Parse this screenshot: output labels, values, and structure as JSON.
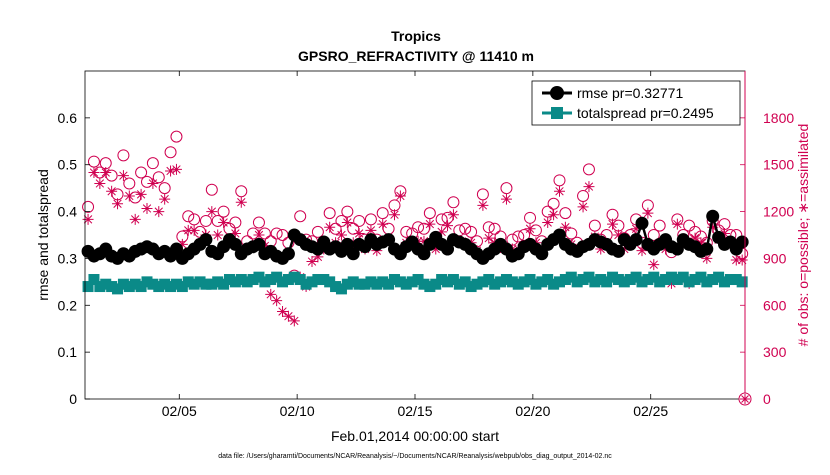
{
  "chart_data": {
    "type": "line",
    "title": "Tropics",
    "subtitle": "GPSRO_REFRACTIVITY @ 11410 m",
    "xlabel": "Feb.01,2014 00:00:00 start",
    "ylabel_left": "rmse and totalspread",
    "ylabel_right": "# of obs: o=possible; ∗=assimilated",
    "footnote": "data file: /Users/gharamti/Documents/NCAR/Reanalysis/~/Documents/NCAR/Reanalysis/webpub/obs_diag_output_2014-02.nc",
    "xlim": [
      1.0,
      29.0
    ],
    "ylim_left": [
      0,
      0.7
    ],
    "ylim_right": [
      0,
      2100
    ],
    "x_ticks": [
      {
        "value": 5,
        "label": "02/05"
      },
      {
        "value": 10,
        "label": "02/10"
      },
      {
        "value": 15,
        "label": "02/15"
      },
      {
        "value": 20,
        "label": "02/20"
      },
      {
        "value": 25,
        "label": "02/25"
      }
    ],
    "y_ticks_left": [
      {
        "value": 0,
        "label": "0"
      },
      {
        "value": 0.1,
        "label": "0.1"
      },
      {
        "value": 0.2,
        "label": "0.2"
      },
      {
        "value": 0.3,
        "label": "0.3"
      },
      {
        "value": 0.4,
        "label": "0.4"
      },
      {
        "value": 0.5,
        "label": "0.5"
      },
      {
        "value": 0.6,
        "label": "0.6"
      }
    ],
    "y_ticks_right": [
      {
        "value": 0,
        "label": "0"
      },
      {
        "value": 300,
        "label": "300"
      },
      {
        "value": 600,
        "label": "600"
      },
      {
        "value": 900,
        "label": "900"
      },
      {
        "value": 1200,
        "label": "1200"
      },
      {
        "value": 1500,
        "label": "1500"
      },
      {
        "value": 1800,
        "label": "1800"
      }
    ],
    "legend_position": "top-right",
    "series": [
      {
        "name": "rmse pr=0.32771",
        "color": "#000000",
        "marker": "circle",
        "axis": "left",
        "x": [
          1.13,
          1.38,
          1.63,
          1.88,
          2.13,
          2.38,
          2.63,
          2.88,
          3.13,
          3.38,
          3.63,
          3.88,
          4.13,
          4.38,
          4.63,
          4.88,
          5.13,
          5.38,
          5.63,
          5.88,
          6.13,
          6.38,
          6.63,
          6.88,
          7.13,
          7.38,
          7.63,
          7.88,
          8.13,
          8.38,
          8.63,
          8.88,
          9.13,
          9.38,
          9.63,
          9.88,
          10.13,
          10.38,
          10.63,
          10.88,
          11.13,
          11.38,
          11.63,
          11.88,
          12.13,
          12.38,
          12.63,
          12.88,
          13.13,
          13.38,
          13.63,
          13.88,
          14.13,
          14.38,
          14.63,
          14.88,
          15.13,
          15.38,
          15.63,
          15.88,
          16.13,
          16.38,
          16.63,
          16.88,
          17.13,
          17.38,
          17.63,
          17.88,
          18.13,
          18.38,
          18.63,
          18.88,
          19.13,
          19.38,
          19.63,
          19.88,
          20.13,
          20.38,
          20.63,
          20.88,
          21.13,
          21.38,
          21.63,
          21.88,
          22.13,
          22.38,
          22.63,
          22.88,
          23.13,
          23.38,
          23.63,
          23.88,
          24.13,
          24.38,
          24.63,
          24.88,
          25.13,
          25.38,
          25.63,
          25.88,
          26.13,
          26.38,
          26.63,
          26.88,
          27.13,
          27.38,
          27.63,
          27.88,
          28.13,
          28.38,
          28.63,
          28.88
        ],
        "values": [
          0.315,
          0.305,
          0.31,
          0.32,
          0.305,
          0.3,
          0.31,
          0.305,
          0.315,
          0.32,
          0.325,
          0.32,
          0.31,
          0.315,
          0.305,
          0.32,
          0.3,
          0.31,
          0.32,
          0.33,
          0.34,
          0.315,
          0.31,
          0.325,
          0.34,
          0.33,
          0.31,
          0.32,
          0.325,
          0.33,
          0.31,
          0.315,
          0.305,
          0.3,
          0.31,
          0.35,
          0.34,
          0.33,
          0.325,
          0.32,
          0.335,
          0.32,
          0.325,
          0.315,
          0.33,
          0.31,
          0.33,
          0.325,
          0.34,
          0.33,
          0.335,
          0.34,
          0.32,
          0.31,
          0.325,
          0.335,
          0.32,
          0.31,
          0.33,
          0.345,
          0.33,
          0.32,
          0.34,
          0.335,
          0.33,
          0.32,
          0.31,
          0.3,
          0.31,
          0.32,
          0.33,
          0.32,
          0.305,
          0.31,
          0.325,
          0.33,
          0.32,
          0.31,
          0.33,
          0.34,
          0.35,
          0.33,
          0.32,
          0.315,
          0.325,
          0.33,
          0.34,
          0.335,
          0.33,
          0.32,
          0.315,
          0.34,
          0.33,
          0.34,
          0.375,
          0.33,
          0.32,
          0.33,
          0.34,
          0.325,
          0.32,
          0.34,
          0.33,
          0.325,
          0.315,
          0.32,
          0.39,
          0.345,
          0.33,
          0.335,
          0.32,
          0.335
        ]
      },
      {
        "name": "totalspread pr=0.2495",
        "color": "#0a8a88",
        "marker": "square",
        "axis": "left",
        "x": [
          1.13,
          1.38,
          1.63,
          1.88,
          2.13,
          2.38,
          2.63,
          2.88,
          3.13,
          3.38,
          3.63,
          3.88,
          4.13,
          4.38,
          4.63,
          4.88,
          5.13,
          5.38,
          5.63,
          5.88,
          6.13,
          6.38,
          6.63,
          6.88,
          7.13,
          7.38,
          7.63,
          7.88,
          8.13,
          8.38,
          8.63,
          8.88,
          9.13,
          9.38,
          9.63,
          9.88,
          10.13,
          10.38,
          10.63,
          10.88,
          11.13,
          11.38,
          11.63,
          11.88,
          12.13,
          12.38,
          12.63,
          12.88,
          13.13,
          13.38,
          13.63,
          13.88,
          14.13,
          14.38,
          14.63,
          14.88,
          15.13,
          15.38,
          15.63,
          15.88,
          16.13,
          16.38,
          16.63,
          16.88,
          17.13,
          17.38,
          17.63,
          17.88,
          18.13,
          18.38,
          18.63,
          18.88,
          19.13,
          19.38,
          19.63,
          19.88,
          20.13,
          20.38,
          20.63,
          20.88,
          21.13,
          21.38,
          21.63,
          21.88,
          22.13,
          22.38,
          22.63,
          22.88,
          23.13,
          23.38,
          23.63,
          23.88,
          24.13,
          24.38,
          24.63,
          24.88,
          25.13,
          25.38,
          25.63,
          25.88,
          26.13,
          26.38,
          26.63,
          26.88,
          27.13,
          27.38,
          27.63,
          27.88,
          28.13,
          28.38,
          28.63,
          28.88
        ],
        "values": [
          0.24,
          0.255,
          0.24,
          0.245,
          0.24,
          0.235,
          0.245,
          0.24,
          0.245,
          0.24,
          0.25,
          0.245,
          0.24,
          0.245,
          0.24,
          0.245,
          0.24,
          0.25,
          0.245,
          0.25,
          0.245,
          0.245,
          0.25,
          0.245,
          0.255,
          0.25,
          0.255,
          0.25,
          0.255,
          0.26,
          0.25,
          0.255,
          0.26,
          0.25,
          0.255,
          0.26,
          0.255,
          0.245,
          0.25,
          0.255,
          0.255,
          0.25,
          0.24,
          0.235,
          0.245,
          0.25,
          0.245,
          0.245,
          0.25,
          0.245,
          0.25,
          0.245,
          0.255,
          0.25,
          0.245,
          0.25,
          0.255,
          0.245,
          0.24,
          0.245,
          0.255,
          0.25,
          0.255,
          0.245,
          0.25,
          0.24,
          0.245,
          0.25,
          0.255,
          0.245,
          0.25,
          0.255,
          0.25,
          0.245,
          0.25,
          0.255,
          0.245,
          0.25,
          0.255,
          0.245,
          0.25,
          0.255,
          0.26,
          0.25,
          0.255,
          0.26,
          0.25,
          0.255,
          0.25,
          0.26,
          0.255,
          0.25,
          0.255,
          0.26,
          0.25,
          0.255,
          0.26,
          0.25,
          0.255,
          0.26,
          0.255,
          0.26,
          0.25,
          0.255,
          0.26,
          0.25,
          0.255,
          0.26,
          0.25,
          0.255,
          0.255,
          0.25
        ]
      },
      {
        "name": "possible",
        "color": "#d00050",
        "marker": "open-circle",
        "axis": "right",
        "x": [
          1.13,
          1.38,
          1.63,
          1.88,
          2.13,
          2.38,
          2.63,
          2.88,
          3.13,
          3.38,
          3.63,
          3.88,
          4.13,
          4.38,
          4.63,
          4.88,
          5.13,
          5.38,
          5.63,
          5.88,
          6.13,
          6.38,
          6.63,
          6.88,
          7.13,
          7.38,
          7.63,
          7.88,
          8.13,
          8.38,
          8.63,
          8.88,
          9.13,
          9.38,
          9.63,
          9.88,
          10.13,
          10.38,
          10.63,
          10.88,
          11.13,
          11.38,
          11.63,
          11.88,
          12.13,
          12.38,
          12.63,
          12.88,
          13.13,
          13.38,
          13.63,
          13.88,
          14.13,
          14.38,
          14.63,
          14.88,
          15.13,
          15.38,
          15.63,
          15.88,
          16.13,
          16.38,
          16.63,
          16.88,
          17.13,
          17.38,
          17.63,
          17.88,
          18.13,
          18.38,
          18.63,
          18.88,
          19.13,
          19.38,
          19.63,
          19.88,
          20.13,
          20.38,
          20.63,
          20.88,
          21.13,
          21.38,
          21.63,
          21.88,
          22.13,
          22.38,
          22.63,
          22.88,
          23.13,
          23.38,
          23.63,
          23.88,
          24.13,
          24.38,
          24.63,
          24.88,
          25.13,
          25.38,
          25.63,
          25.88,
          26.13,
          26.38,
          26.63,
          26.88,
          27.13,
          27.38,
          27.63,
          27.88,
          28.13,
          28.38,
          28.63,
          28.88
        ],
        "values": [
          1230,
          1520,
          1450,
          1510,
          1430,
          1310,
          1560,
          1380,
          1290,
          1450,
          1390,
          1510,
          1420,
          1350,
          1580,
          1680,
          1040,
          1170,
          1150,
          1070,
          1140,
          1340,
          1140,
          1200,
          1090,
          1130,
          1330,
          1010,
          1060,
          1130,
          1060,
          1010,
          1060,
          1050,
          1000,
          790,
          1170,
          1020,
          1010,
          1070,
          1000,
          1190,
          1090,
          1140,
          1200,
          1090,
          1140,
          1020,
          1150,
          1020,
          1190,
          1090,
          1240,
          1330,
          1070,
          1060,
          1100,
          1090,
          1190,
          1020,
          1150,
          1160,
          1260,
          1080,
          1090,
          1070,
          1010,
          1310,
          1100,
          1090,
          1040,
          1350,
          1020,
          1040,
          1050,
          1160,
          1080,
          1010,
          1200,
          1250,
          1400,
          1190,
          1060,
          1000,
          1300,
          1470,
          1110,
          1020,
          1050,
          1180,
          1110,
          1030,
          1050,
          1150,
          1000,
          1240,
          1050,
          1110,
          1020,
          940,
          1150,
          1050,
          1110,
          1070,
          1040,
          1000,
          1140,
          1080,
          1120,
          1050,
          1050,
          930
        ]
      },
      {
        "name": "assimilated",
        "color": "#d00050",
        "marker": "asterisk",
        "axis": "right",
        "x": [
          1.13,
          1.38,
          1.63,
          1.88,
          2.13,
          2.38,
          2.63,
          2.88,
          3.13,
          3.38,
          3.63,
          3.88,
          4.13,
          4.38,
          4.63,
          4.88,
          5.13,
          5.38,
          5.63,
          5.88,
          6.13,
          6.38,
          6.63,
          6.88,
          7.13,
          7.38,
          7.63,
          7.88,
          8.13,
          8.38,
          8.63,
          8.88,
          9.13,
          9.38,
          9.63,
          9.88,
          10.13,
          10.38,
          10.63,
          10.88,
          11.13,
          11.38,
          11.63,
          11.88,
          12.13,
          12.38,
          12.63,
          12.88,
          13.13,
          13.38,
          13.63,
          13.88,
          14.13,
          14.38,
          14.63,
          14.88,
          15.13,
          15.38,
          15.63,
          15.88,
          16.13,
          16.38,
          16.63,
          16.88,
          17.13,
          17.38,
          17.63,
          17.88,
          18.13,
          18.38,
          18.63,
          18.88,
          19.13,
          19.38,
          19.63,
          19.88,
          20.13,
          20.38,
          20.63,
          20.88,
          21.13,
          21.38,
          21.63,
          21.88,
          22.13,
          22.38,
          22.63,
          22.88,
          23.13,
          23.38,
          23.63,
          23.88,
          24.13,
          24.38,
          24.63,
          24.88,
          25.13,
          25.38,
          25.63,
          25.88,
          26.13,
          26.38,
          26.63,
          26.88,
          27.13,
          27.38,
          27.63,
          27.88,
          28.13,
          28.38,
          28.63,
          28.88
        ],
        "values": [
          1150,
          1450,
          1380,
          1450,
          1330,
          1250,
          1430,
          1300,
          1150,
          1310,
          1220,
          1380,
          1200,
          1280,
          1460,
          1470,
          990,
          1080,
          1080,
          1000,
          1050,
          1200,
          1050,
          1130,
          1010,
          1060,
          1260,
          960,
          980,
          1050,
          980,
          670,
          630,
          560,
          530,
          500,
          780,
          720,
          880,
          910,
          960,
          1100,
          1000,
          1050,
          1130,
          1000,
          1060,
          960,
          1080,
          950,
          1120,
          1020,
          1180,
          1300,
          1000,
          990,
          1010,
          1010,
          1120,
          960,
          1070,
          1110,
          1180,
          1010,
          1000,
          1000,
          950,
          1240,
          1030,
          1000,
          970,
          1280,
          960,
          960,
          980,
          1090,
          1000,
          950,
          1130,
          1180,
          1330,
          1100,
          990,
          950,
          1230,
          1360,
          1040,
          960,
          980,
          1120,
          1050,
          960,
          990,
          1090,
          950,
          1190,
          860,
          1000,
          960,
          740,
          1120,
          1000,
          740,
          1030,
          1000,
          900,
          1100,
          1020,
          1060,
          990,
          890,
          890
        ]
      }
    ]
  },
  "corner_marker_label": "0"
}
